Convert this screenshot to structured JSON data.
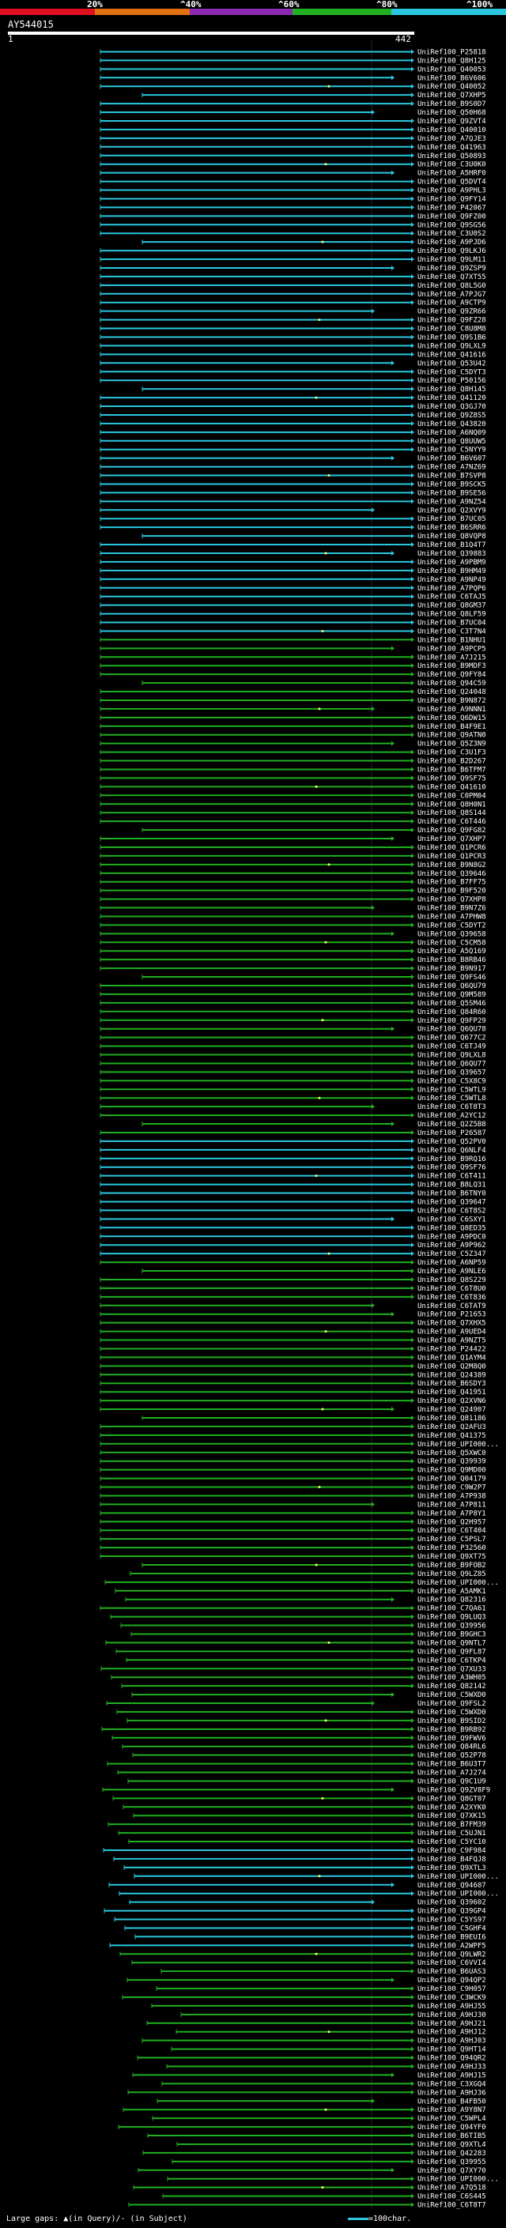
{
  "query": {
    "id": "AY544015",
    "start": "1",
    "end": "442"
  },
  "legend": {
    "ticks": [
      "20%",
      "^40%",
      "^60%",
      "^80%",
      "^100%"
    ],
    "colors": [
      "#e01020",
      "#e07010",
      "#8a2ab0",
      "#20b020",
      "#2ac8e0"
    ]
  },
  "footer": {
    "large_gaps": "Large gaps: ▲(in Query)/- (in Subject)",
    "scale": "=100char."
  },
  "hits": [
    "UniRef100_P25818",
    "UniRef100_Q8H125",
    "UniRef100_Q40053",
    "UniRef100_B6V606",
    "UniRef100_Q40052",
    "UniRef100_Q7XHP5",
    "UniRef100_B9S0D7",
    "UniRef100_Q50H68",
    "UniRef100_Q9ZVT4",
    "UniRef100_Q40010",
    "UniRef100_A7QJE3",
    "UniRef100_Q41963",
    "UniRef100_Q50893",
    "UniRef100_C3U0K0",
    "UniRef100_A5HRF0",
    "UniRef100_Q5DVT4",
    "UniRef100_A9PHL3",
    "UniRef100_Q9FY14",
    "UniRef100_P42067",
    "UniRef100_Q9FZ00",
    "UniRef100_Q9SG56",
    "UniRef100_C3U0S2",
    "UniRef100_A9PJD6",
    "UniRef100_Q9LKJ6",
    "UniRef100_Q9LM11",
    "UniRef100_Q9ZSP9",
    "UniRef100_Q7XT55",
    "UniRef100_Q8L5G0",
    "UniRef100_A7PJG7",
    "UniRef100_A9CTP9",
    "UniRef100_Q9ZR66",
    "UniRef100_Q9FZ28",
    "UniRef100_C8U8M8",
    "UniRef100_Q9S1B6",
    "UniRef100_Q9LXL9",
    "UniRef100_Q41616",
    "UniRef100_Q53U42",
    "UniRef100_C5DYT3",
    "UniRef100_P50156",
    "UniRef100_Q8H145",
    "UniRef100_Q41120",
    "UniRef100_Q3GJ70",
    "UniRef100_Q9Z8S5",
    "UniRef100_Q43820",
    "UniRef100_A6NQ09",
    "UniRef100_Q8UUW5",
    "UniRef100_C5NYY9",
    "UniRef100_B6V607",
    "UniRef100_A7NZ69",
    "UniRef100_B7SVP8",
    "UniRef100_B9SCK5",
    "UniRef100_B9SE56",
    "UniRef100_A9NZ54",
    "UniRef100_Q2XVY9",
    "UniRef100_B7UC05",
    "UniRef100_B6SRR6",
    "UniRef100_Q8VQP8",
    "UniRef100_B1Q4T7",
    "UniRef100_Q39883",
    "UniRef100_A9PBM9",
    "UniRef100_B9HM49",
    "UniRef100_A9NP49",
    "UniRef100_A7PQP6",
    "UniRef100_C6TAJ5",
    "UniRef100_Q8GM37",
    "UniRef100_Q8LF59",
    "UniRef100_B7UC04",
    "UniRef100_C3T7N4",
    "UniRef100_B1NHU1",
    "UniRef100_A9PCP5",
    "UniRef100_A7J215",
    "UniRef100_B9MDF3",
    "UniRef100_Q9FY84",
    "UniRef100_Q94C59",
    "UniRef100_Q24048",
    "UniRef100_B9N872",
    "UniRef100_A9NNN1",
    "UniRef100_Q6DW15",
    "UniRef100_B4F9E1",
    "UniRef100_Q9ATN0",
    "UniRef100_Q5Z3N9",
    "UniRef100_C3U1F3",
    "UniRef100_B2D267",
    "UniRef100_B6TFM7",
    "UniRef100_Q9SF75",
    "UniRef100_Q41610",
    "UniRef100_C0PM04",
    "UniRef100_Q8H0N1",
    "UniRef100_Q8S144",
    "UniRef100_C6T446",
    "UniRef100_Q9FG82",
    "UniRef100_Q7XHP7",
    "UniRef100_Q1PCR6",
    "UniRef100_Q1PCR3",
    "UniRef100_B9N8G2",
    "UniRef100_Q39646",
    "UniRef100_B7FF75",
    "UniRef100_B9F520",
    "UniRef100_Q7XHP8",
    "UniRef100_B9N7Z6",
    "UniRef100_A7PHW8",
    "UniRef100_C5DYT2",
    "UniRef100_Q39658",
    "UniRef100_C5CM58",
    "UniRef100_A5Q169",
    "UniRef100_B8RB46",
    "UniRef100_B9N917",
    "UniRef100_Q9FS46",
    "UniRef100_Q6QU79",
    "UniRef100_Q9M589",
    "UniRef100_Q5SM46",
    "UniRef100_Q84R60",
    "UniRef100_Q9FP29",
    "UniRef100_Q6QU78",
    "UniRef100_Q677C2",
    "UniRef100_C6TJ49",
    "UniRef100_Q9LXL8",
    "UniRef100_Q6QU77",
    "UniRef100_Q39657",
    "UniRef100_C5X8C9",
    "UniRef100_C5WTL9",
    "UniRef100_C5WTL8",
    "UniRef100_C6T8T3",
    "UniRef100_A2YC12",
    "UniRef100_Q2Z5B8",
    "UniRef100_P26587",
    "UniRef100_Q52PV0",
    "UniRef100_Q6NLF4",
    "UniRef100_B9RQ16",
    "UniRef100_Q9SF76",
    "UniRef100_C6T411",
    "UniRef100_B8LQ31",
    "UniRef100_B6TNY0",
    "UniRef100_Q39647",
    "UniRef100_C6T8S2",
    "UniRef100_C6SXY1",
    "UniRef100_Q8ED35",
    "UniRef100_A9PDC0",
    "UniRef100_A9P962",
    "UniRef100_C5Z347",
    "UniRef100_A6NP59",
    "UniRef100_A9NLE6",
    "UniRef100_Q8S229",
    "UniRef100_C6T8U0",
    "UniRef100_C6T836",
    "UniRef100_C6TAT9",
    "UniRef100_P21653",
    "UniRef100_Q7XHX5",
    "UniRef100_A9UED4",
    "UniRef100_A9NZT5",
    "UniRef100_P24422",
    "UniRef100_Q1AYM4",
    "UniRef100_Q2M8Q0",
    "UniRef100_Q24389",
    "UniRef100_B6SDY3",
    "UniRef100_Q41951",
    "UniRef100_Q2XVN6",
    "UniRef100_Q24907",
    "UniRef100_Q81186",
    "UniRef100_Q2AFU3",
    "UniRef100_Q41375",
    "UniRef100_UPI000...",
    "UniRef100_Q5XWC0",
    "UniRef100_Q39939",
    "UniRef100_Q9MD00",
    "UniRef100_Q04179",
    "UniRef100_C9W2P7",
    "UniRef100_A7P938",
    "UniRef100_A7P811",
    "UniRef100_A7P8Y1",
    "UniRef100_Q2H957",
    "UniRef100_C6T404",
    "UniRef100_C5PSL7",
    "UniRef100_P32560",
    "UniRef100_Q9XT75",
    "UniRef100_B9FOB2",
    "UniRef100_Q9LZ85",
    "UniRef100_UPI000...",
    "UniRef100_A5AMK1",
    "UniRef100_Q82316",
    "UniRef100_C7QA61",
    "UniRef100_Q9LUQ3",
    "UniRef100_Q39956",
    "UniRef100_B9GHC3",
    "UniRef100_Q9NTL7",
    "UniRef100_Q9FL87",
    "UniRef100_C6TKP4",
    "UniRef100_Q7XU33",
    "UniRef100_A3WH05",
    "UniRef100_Q82142",
    "UniRef100_C5WXD0",
    "UniRef100_Q9FSL2",
    "UniRef100_C5WXD0",
    "UniRef100_B9SID2",
    "UniRef100_B9RB92",
    "UniRef100_Q9FWV6",
    "UniRef100_Q84RL6",
    "UniRef100_Q52P78",
    "UniRef100_B6U3T7",
    "UniRef100_A7J274",
    "UniRef100_Q9C1U9",
    "UniRef100_Q9ZV8F9",
    "UniRef100_Q8GT07",
    "UniRef100_A2XYK0",
    "UniRef100_Q7XK15",
    "UniRef100_B7FM39",
    "UniRef100_C5UJN1",
    "UniRef100_C5YC10",
    "UniRef100_C9F984",
    "UniRef100_B4FQJ8",
    "UniRef100_Q9XTL3",
    "UniRef100_UPI000...",
    "UniRef100_Q94607",
    "UniRef100_UPI000...",
    "UniRef100_Q39602",
    "UniRef100_Q39GP4",
    "UniRef100_C5YS97",
    "UniRef100_C5GHF4",
    "UniRef100_B9EUI6",
    "UniRef100_A2WPF5",
    "UniRef100_Q9LWR2",
    "UniRef100_C6VVI4",
    "UniRef100_B6UAS3",
    "UniRef100_Q94QP2",
    "UniRef100_C9H057",
    "UniRef100_C3WCK9",
    "UniRef100_A9HJ55",
    "UniRef100_A9HJ30",
    "UniRef100_A9HJ21",
    "UniRef100_A9HJ12",
    "UniRef100_A9HJ03",
    "UniRef100_Q9HT14",
    "UniRef100_Q94QR2",
    "UniRef100_A9HJ33",
    "UniRef100_A9HJ15",
    "UniRef100_C3XGQ4",
    "UniRef100_A9HJ36",
    "UniRef100_B4FB50",
    "UniRef100_A9Y8N7",
    "UniRef100_C5WPL4",
    "UniRef100_Q94YF0",
    "UniRef100_B6TIB5",
    "UniRef100_Q9XTL4",
    "UniRef100_Q42283",
    "UniRef100_Q39955",
    "UniRef100_Q7XY70",
    "UniRef100_UPI000...",
    "UniRef100_A7Q518",
    "UniRef100_C6S445",
    "UniRef100_C6T8T7"
  ]
}
